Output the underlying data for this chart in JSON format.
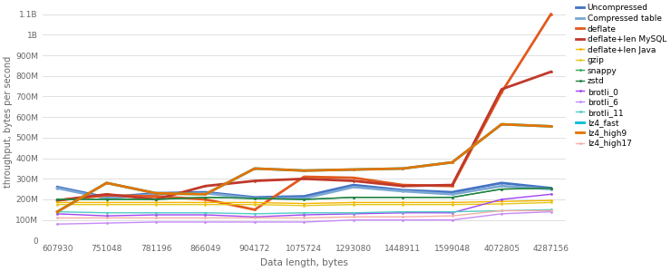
{
  "x_labels": [
    "607930",
    "751048",
    "781196",
    "866049",
    "904172",
    "1075724",
    "1293080",
    "1448911",
    "1599048",
    "4072805",
    "4287156"
  ],
  "series": {
    "Uncompressed": [
      260,
      210,
      230,
      235,
      210,
      215,
      270,
      245,
      235,
      280,
      255
    ],
    "Compressed table": [
      255,
      205,
      225,
      230,
      205,
      205,
      260,
      240,
      225,
      265,
      250
    ],
    "deflate": [
      195,
      220,
      215,
      200,
      150,
      310,
      305,
      270,
      265,
      720,
      1100
    ],
    "deflate+len MySQL": [
      195,
      225,
      200,
      265,
      290,
      300,
      290,
      265,
      270,
      735,
      820
    ],
    "deflate+len Java": [
      185,
      185,
      185,
      185,
      185,
      180,
      185,
      185,
      185,
      190,
      195
    ],
    "gzip": [
      175,
      175,
      175,
      175,
      175,
      170,
      175,
      175,
      175,
      178,
      185
    ],
    "snappy": [
      200,
      200,
      200,
      210,
      205,
      200,
      210,
      210,
      210,
      250,
      255
    ],
    "zstd": [
      200,
      200,
      200,
      210,
      205,
      200,
      210,
      210,
      210,
      250,
      255
    ],
    "brotli_0": [
      130,
      120,
      125,
      125,
      115,
      125,
      130,
      135,
      135,
      200,
      225
    ],
    "brotli_6": [
      80,
      85,
      90,
      90,
      90,
      90,
      100,
      100,
      100,
      130,
      140
    ],
    "brotli_11": [
      140,
      135,
      135,
      135,
      130,
      135,
      135,
      140,
      140,
      145,
      150
    ],
    "lz4_fast": [
      140,
      280,
      230,
      225,
      350,
      340,
      345,
      350,
      380,
      565,
      555
    ],
    "lz4_high9": [
      140,
      280,
      230,
      225,
      350,
      340,
      345,
      350,
      380,
      565,
      555
    ],
    "lz4_high17": [
      110,
      110,
      110,
      110,
      110,
      110,
      115,
      115,
      120,
      145,
      145
    ]
  },
  "colors": {
    "Uncompressed": "#4472c4",
    "Compressed table": "#7ba7d4",
    "deflate": "#e05a1e",
    "deflate+len MySQL": "#c0392b",
    "deflate+len Java": "#f4b400",
    "gzip": "#e6c619",
    "snappy": "#34a853",
    "zstd": "#1e7e3e",
    "brotli_0": "#a142f4",
    "brotli_6": "#c58af9",
    "brotli_11": "#4ecdc4",
    "lz4_fast": "#00bcd4",
    "lz4_high9": "#e37400",
    "lz4_high17": "#f6aea9"
  },
  "linewidths": {
    "Uncompressed": 2.0,
    "Compressed table": 2.0,
    "deflate": 2.0,
    "deflate+len MySQL": 2.0,
    "deflate+len Java": 1.0,
    "gzip": 1.0,
    "snappy": 1.0,
    "zstd": 1.0,
    "brotli_0": 1.0,
    "brotli_6": 1.0,
    "brotli_11": 1.0,
    "lz4_fast": 2.0,
    "lz4_high9": 2.0,
    "lz4_high17": 1.0
  },
  "xlabel": "Data length, bytes",
  "ylabel": "throughput, bytes per second",
  "ytick_labels": [
    "0",
    "100M",
    "200M",
    "300M",
    "400M",
    "500M",
    "600M",
    "700M",
    "800M",
    "900M",
    "1B",
    "1.1B"
  ],
  "ytick_values": [
    0,
    100,
    200,
    300,
    400,
    500,
    600,
    700,
    800,
    900,
    1000,
    1100
  ],
  "background_color": "#ffffff",
  "grid_color": "#e0e0e0"
}
